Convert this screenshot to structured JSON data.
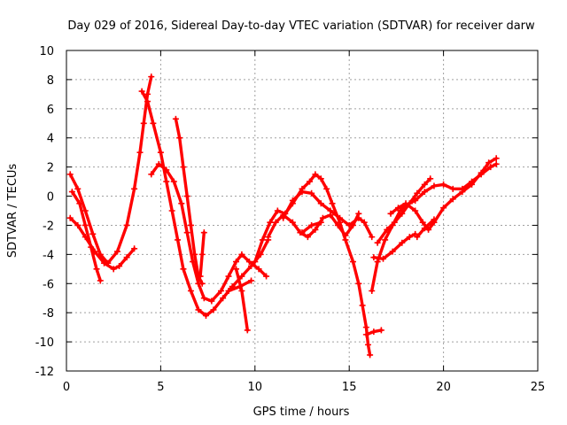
{
  "chart_data": {
    "type": "scatter",
    "title": "Day 029 of 2016, Sidereal Day-to-day VTEC variation (SDTVAR) for receiver darw",
    "xlabel": "GPS time / hours",
    "ylabel": "SDTVAR / TECUs",
    "xlim": [
      0,
      25
    ],
    "ylim": [
      -12,
      10
    ],
    "xticks": [
      0,
      5,
      10,
      15,
      20,
      25
    ],
    "yticks": [
      -12,
      -10,
      -8,
      -6,
      -4,
      -2,
      0,
      2,
      4,
      6,
      8,
      10
    ],
    "grid": true,
    "marker": "+",
    "color": "#ff0000",
    "series": [
      {
        "name": "trace-1",
        "points": [
          [
            0.2,
            1.5
          ],
          [
            0.6,
            0.5
          ],
          [
            1.0,
            -1.0
          ],
          [
            1.4,
            -2.6
          ],
          [
            1.8,
            -4.0
          ],
          [
            2.2,
            -4.6
          ],
          [
            2.7,
            -3.8
          ],
          [
            3.2,
            -2.0
          ],
          [
            3.6,
            0.5
          ],
          [
            3.9,
            3.0
          ],
          [
            4.1,
            5.0
          ],
          [
            4.3,
            7.0
          ],
          [
            4.5,
            8.2
          ]
        ]
      },
      {
        "name": "trace-2",
        "points": [
          [
            0.3,
            0.3
          ],
          [
            0.7,
            -0.5
          ],
          [
            1.0,
            -2.0
          ],
          [
            1.3,
            -3.5
          ],
          [
            1.6,
            -5.0
          ],
          [
            1.8,
            -5.8
          ]
        ]
      },
      {
        "name": "trace-3",
        "points": [
          [
            0.2,
            -1.5
          ],
          [
            0.6,
            -2.0
          ],
          [
            1.0,
            -2.8
          ],
          [
            1.5,
            -3.8
          ],
          [
            2.0,
            -4.6
          ],
          [
            2.5,
            -5.0
          ],
          [
            2.8,
            -4.8
          ],
          [
            3.2,
            -4.2
          ],
          [
            3.6,
            -3.6
          ]
        ]
      },
      {
        "name": "trace-4",
        "points": [
          [
            4.0,
            7.2
          ],
          [
            4.3,
            6.5
          ],
          [
            4.6,
            5.0
          ],
          [
            5.0,
            3.0
          ],
          [
            5.3,
            1.0
          ],
          [
            5.6,
            -1.0
          ],
          [
            5.9,
            -3.0
          ],
          [
            6.2,
            -5.0
          ],
          [
            6.6,
            -6.5
          ],
          [
            7.0,
            -7.8
          ],
          [
            7.4,
            -8.2
          ],
          [
            7.8,
            -7.8
          ],
          [
            8.3,
            -7.0
          ],
          [
            8.8,
            -6.2
          ],
          [
            9.3,
            -5.5
          ],
          [
            9.8,
            -4.8
          ],
          [
            10.3,
            -4.0
          ],
          [
            10.7,
            -3.0
          ]
        ]
      },
      {
        "name": "trace-5",
        "points": [
          [
            4.5,
            1.5
          ],
          [
            4.9,
            2.2
          ],
          [
            5.3,
            1.8
          ],
          [
            5.7,
            1.0
          ],
          [
            6.1,
            -0.5
          ],
          [
            6.4,
            -2.5
          ],
          [
            6.7,
            -4.5
          ],
          [
            7.0,
            -6.0
          ],
          [
            7.3,
            -7.0
          ],
          [
            7.7,
            -7.2
          ],
          [
            8.2,
            -6.5
          ],
          [
            8.6,
            -5.5
          ],
          [
            9.0,
            -4.5
          ],
          [
            9.3,
            -4.0
          ],
          [
            9.7,
            -4.5
          ],
          [
            10.2,
            -5.0
          ],
          [
            10.6,
            -5.5
          ]
        ]
      },
      {
        "name": "trace-6",
        "points": [
          [
            5.8,
            5.3
          ],
          [
            6.0,
            4.0
          ],
          [
            6.2,
            2.0
          ],
          [
            6.4,
            0.0
          ],
          [
            6.6,
            -2.0
          ],
          [
            6.8,
            -4.0
          ],
          [
            7.0,
            -5.5
          ],
          [
            7.2,
            -6.0
          ]
        ]
      },
      {
        "name": "trace-7",
        "points": [
          [
            7.1,
            -5.5
          ],
          [
            7.2,
            -4.0
          ],
          [
            7.3,
            -2.5
          ]
        ]
      },
      {
        "name": "trace-8",
        "points": [
          [
            9.0,
            -5.0
          ],
          [
            9.3,
            -6.5
          ],
          [
            9.6,
            -9.2
          ]
        ]
      },
      {
        "name": "trace-9",
        "points": [
          [
            8.6,
            -6.5
          ],
          [
            9.2,
            -6.2
          ],
          [
            9.8,
            -5.8
          ]
        ]
      },
      {
        "name": "trace-10",
        "points": [
          [
            10.0,
            -4.5
          ],
          [
            10.4,
            -3.0
          ],
          [
            10.8,
            -1.8
          ],
          [
            11.2,
            -1.0
          ],
          [
            11.6,
            -1.2
          ],
          [
            12.0,
            -0.5
          ],
          [
            12.5,
            0.5
          ],
          [
            12.9,
            1.0
          ],
          [
            13.2,
            1.5
          ],
          [
            13.5,
            1.2
          ],
          [
            13.8,
            0.5
          ],
          [
            14.1,
            -0.5
          ],
          [
            14.5,
            -1.8
          ],
          [
            14.8,
            -3.0
          ],
          [
            15.2,
            -4.5
          ],
          [
            15.5,
            -6.0
          ],
          [
            15.7,
            -7.5
          ],
          [
            15.9,
            -9.0
          ],
          [
            16.0,
            -10.2
          ],
          [
            16.1,
            -10.9
          ]
        ]
      },
      {
        "name": "trace-11",
        "points": [
          [
            10.7,
            -2.8
          ],
          [
            11.1,
            -1.8
          ],
          [
            11.5,
            -1.3
          ],
          [
            12.0,
            -1.8
          ],
          [
            12.4,
            -2.5
          ],
          [
            12.8,
            -2.8
          ],
          [
            13.2,
            -2.3
          ],
          [
            13.6,
            -1.5
          ],
          [
            14.0,
            -1.3
          ],
          [
            14.4,
            -2.0
          ],
          [
            14.8,
            -2.7
          ],
          [
            15.2,
            -2.0
          ],
          [
            15.5,
            -1.2
          ]
        ]
      },
      {
        "name": "trace-12",
        "points": [
          [
            11.5,
            -1.5
          ],
          [
            12.0,
            -0.3
          ],
          [
            12.5,
            0.3
          ],
          [
            13.0,
            0.2
          ],
          [
            13.5,
            -0.5
          ],
          [
            14.0,
            -1.0
          ],
          [
            14.5,
            -1.5
          ],
          [
            15.0,
            -2.0
          ],
          [
            15.5,
            -1.5
          ],
          [
            15.8,
            -1.8
          ],
          [
            16.2,
            -2.8
          ]
        ]
      },
      {
        "name": "trace-13",
        "points": [
          [
            12.5,
            -2.5
          ],
          [
            13.0,
            -2.0
          ],
          [
            13.5,
            -1.8
          ]
        ]
      },
      {
        "name": "trace-14",
        "points": [
          [
            15.9,
            -9.5
          ],
          [
            16.3,
            -9.3
          ],
          [
            16.7,
            -9.2
          ]
        ]
      },
      {
        "name": "trace-15",
        "points": [
          [
            16.2,
            -6.5
          ],
          [
            16.5,
            -4.5
          ],
          [
            16.9,
            -3.0
          ],
          [
            17.3,
            -2.0
          ],
          [
            17.7,
            -1.0
          ],
          [
            18.0,
            -0.6
          ],
          [
            18.5,
            -0.3
          ],
          [
            19.0,
            0.3
          ],
          [
            19.5,
            0.7
          ],
          [
            20.0,
            0.8
          ],
          [
            20.5,
            0.5
          ],
          [
            21.0,
            0.5
          ],
          [
            21.5,
            1.0
          ],
          [
            22.0,
            1.5
          ],
          [
            22.5,
            2.0
          ],
          [
            22.8,
            2.2
          ]
        ]
      },
      {
        "name": "trace-16",
        "points": [
          [
            16.3,
            -4.2
          ],
          [
            16.8,
            -4.3
          ],
          [
            17.3,
            -3.8
          ],
          [
            17.8,
            -3.2
          ],
          [
            18.2,
            -2.8
          ],
          [
            18.5,
            -2.6
          ]
        ]
      },
      {
        "name": "trace-17",
        "points": [
          [
            16.5,
            -3.2
          ],
          [
            17.0,
            -2.3
          ],
          [
            17.4,
            -1.8
          ],
          [
            17.8,
            -1.2
          ],
          [
            18.2,
            -0.5
          ],
          [
            18.6,
            0.2
          ],
          [
            19.0,
            0.8
          ],
          [
            19.3,
            1.2
          ]
        ]
      },
      {
        "name": "trace-18",
        "points": [
          [
            17.2,
            -1.2
          ],
          [
            17.6,
            -0.8
          ],
          [
            18.0,
            -0.5
          ],
          [
            18.5,
            -1.0
          ],
          [
            18.9,
            -1.8
          ],
          [
            19.2,
            -2.3
          ],
          [
            19.5,
            -1.8
          ],
          [
            20.0,
            -0.8
          ],
          [
            20.5,
            -0.2
          ],
          [
            21.0,
            0.3
          ],
          [
            21.5,
            0.8
          ],
          [
            22.0,
            1.6
          ],
          [
            22.4,
            2.3
          ],
          [
            22.8,
            2.6
          ]
        ]
      },
      {
        "name": "trace-19",
        "points": [
          [
            18.6,
            -2.8
          ],
          [
            19.0,
            -2.2
          ],
          [
            19.5,
            -1.6
          ]
        ]
      }
    ]
  }
}
